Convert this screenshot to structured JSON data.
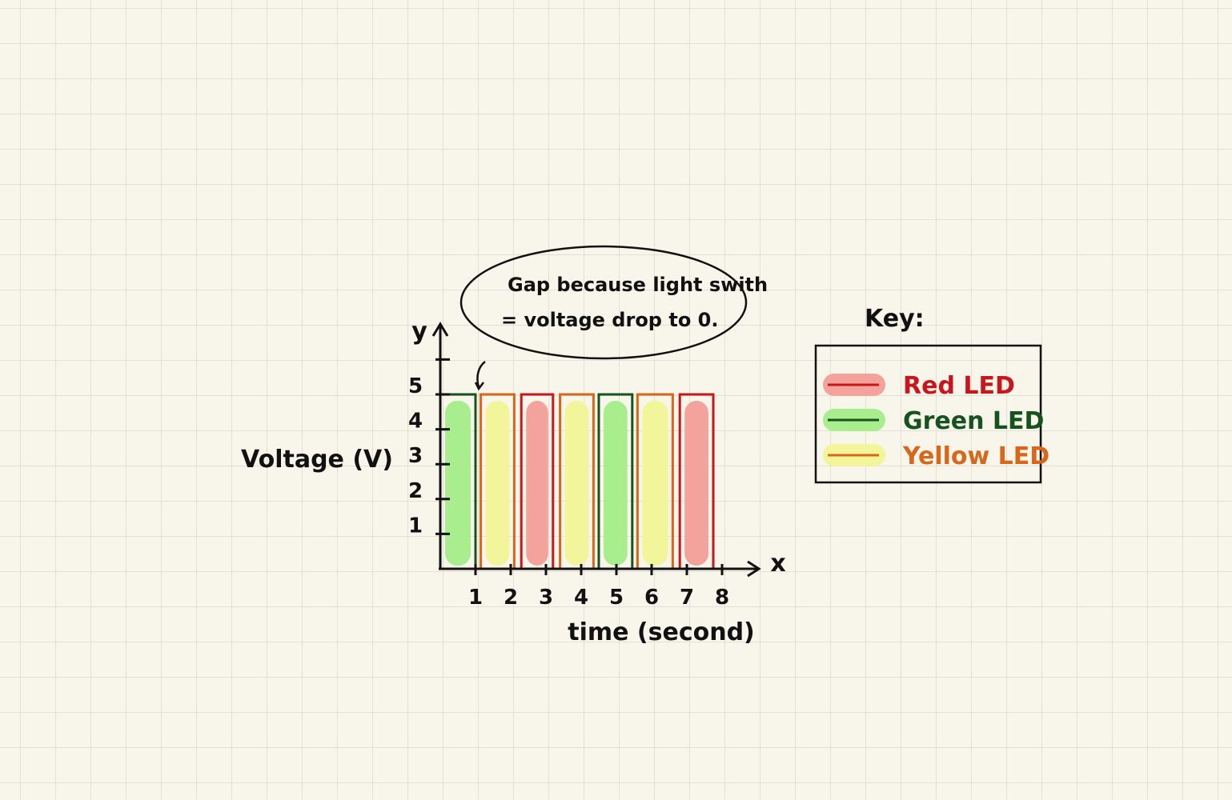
{
  "chart_data": {
    "type": "bar",
    "x": [
      1,
      2,
      3,
      4,
      5,
      6,
      7,
      8
    ],
    "xlabel": "time (second)",
    "ylabel": "Voltage (V)",
    "x_axis_letter": "x",
    "y_axis_letter": "y",
    "y_ticks": [
      1,
      2,
      3,
      4,
      5
    ],
    "ylim": [
      0,
      6
    ],
    "xlim": [
      0,
      8.5
    ],
    "bars": [
      {
        "led": "green",
        "x_start": 0.0,
        "x_end": 1.0,
        "value": 5
      },
      {
        "led": "yellow",
        "x_start": 1.15,
        "x_end": 2.1,
        "value": 5
      },
      {
        "led": "red",
        "x_start": 2.3,
        "x_end": 3.2,
        "value": 5
      },
      {
        "led": "yellow",
        "x_start": 3.4,
        "x_end": 4.35,
        "value": 5
      },
      {
        "led": "green",
        "x_start": 4.5,
        "x_end": 5.45,
        "value": 5
      },
      {
        "led": "yellow",
        "x_start": 5.6,
        "x_end": 6.6,
        "value": 5
      },
      {
        "led": "red",
        "x_start": 6.8,
        "x_end": 7.75,
        "value": 5
      }
    ],
    "annotation": {
      "lines": [
        "Gap because light swith",
        "= voltage drop to 0."
      ]
    },
    "legend": {
      "title": "Key:",
      "placement": "right",
      "entries": [
        {
          "led": "red",
          "label": "Red LED"
        },
        {
          "led": "green",
          "label": "Green LED"
        },
        {
          "led": "yellow",
          "label": "Yellow LED"
        }
      ]
    },
    "colors": {
      "red": {
        "edge": "#c8161d",
        "fill": "#f3a39c",
        "text": "#c8161d"
      },
      "green": {
        "edge": "#17531f",
        "fill": "#a9ee8e",
        "text": "#17531f"
      },
      "yellow": {
        "edge": "#d8671b",
        "fill": "#f3f59a",
        "text": "#d8671b"
      }
    }
  }
}
